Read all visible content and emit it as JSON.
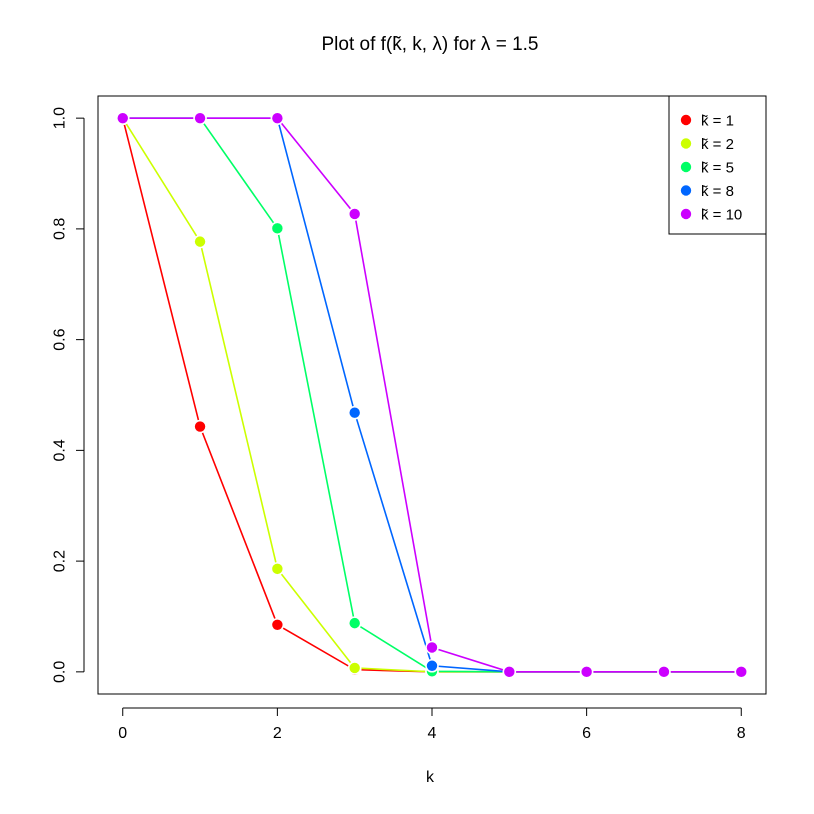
{
  "chart_data": {
    "type": "line",
    "title": "Plot of  f(k̃, k, λ)  for  λ = 1.5",
    "xlabel": "k",
    "ylabel": "",
    "xlim": [
      -0.32,
      8.32
    ],
    "ylim": [
      -0.04,
      1.04
    ],
    "xticks": [
      0,
      2,
      4,
      6,
      8
    ],
    "yticks": [
      0.0,
      0.2,
      0.4,
      0.6,
      0.8,
      1.0
    ],
    "xtick_labels": [
      "0",
      "2",
      "4",
      "6",
      "8"
    ],
    "ytick_labels": [
      "0.0",
      "0.2",
      "0.4",
      "0.6",
      "0.8",
      "1.0"
    ],
    "grid": false,
    "legend_position": "top-right",
    "x": [
      0,
      1,
      2,
      3,
      4,
      5,
      6,
      7,
      8
    ],
    "series": [
      {
        "name": "k̃ = 1",
        "color": "#ff0000",
        "values": [
          1.0,
          0.443,
          0.085,
          0.004,
          0.0,
          0.0,
          0.0,
          0.0,
          0.0
        ]
      },
      {
        "name": "k̃ = 2",
        "color": "#ccff00",
        "values": [
          1.0,
          0.777,
          0.186,
          0.007,
          0.0,
          0.0,
          0.0,
          0.0,
          0.0
        ]
      },
      {
        "name": "k̃ = 5",
        "color": "#00ff66",
        "values": [
          1.0,
          1.0,
          0.801,
          0.088,
          0.001,
          0.0,
          0.0,
          0.0,
          0.0
        ]
      },
      {
        "name": "k̃ = 8",
        "color": "#0066ff",
        "values": [
          1.0,
          1.0,
          1.0,
          0.468,
          0.011,
          0.0,
          0.0,
          0.0,
          0.0
        ]
      },
      {
        "name": "k̃ = 10",
        "color": "#cc00ff",
        "values": [
          1.0,
          1.0,
          1.0,
          0.827,
          0.044,
          0.0,
          0.0,
          0.0,
          0.0
        ]
      }
    ]
  }
}
